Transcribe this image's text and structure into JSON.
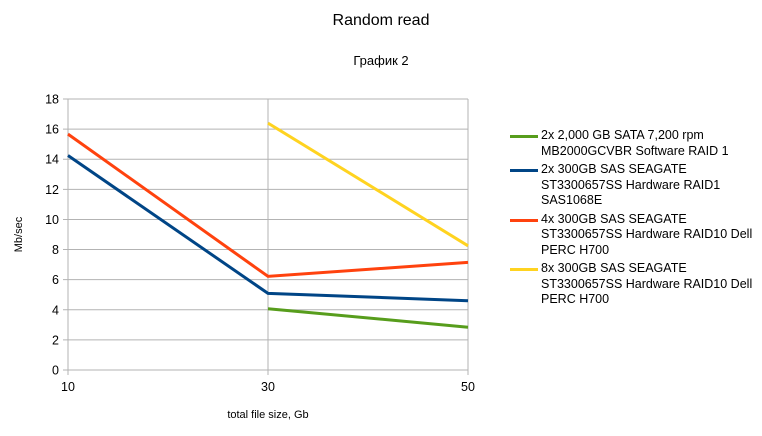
{
  "chart_data": {
    "type": "line",
    "title": "Random read",
    "subtitle": "График 2",
    "xlabel": "total file size, Gb",
    "ylabel": "Mb/sec",
    "x": [
      10,
      30,
      50
    ],
    "x_ticks": [
      "10",
      "30",
      "50"
    ],
    "ylim": [
      0,
      18
    ],
    "y_ticks": [
      "0",
      "2",
      "4",
      "6",
      "8",
      "10",
      "12",
      "14",
      "16",
      "18"
    ],
    "grid": true,
    "legend_position": "right",
    "series": [
      {
        "name": "2x 2,000 GB SATA 7,200 rpm MB2000GCVBR Software RAID 1",
        "color": "#579d1c",
        "values": [
          null,
          4.07,
          2.84
        ]
      },
      {
        "name": "2x 300GB SAS SEAGATE ST3300657SS Hardware RAID1 SAS1068E",
        "color": "#004586",
        "values": [
          14.25,
          5.09,
          4.6
        ]
      },
      {
        "name": "4x 300GB SAS SEAGATE ST3300657SS Hardware RAID10 Dell PERC H700",
        "color": "#ff420e",
        "values": [
          15.67,
          6.22,
          7.15
        ]
      },
      {
        "name": "8x 300GB SAS SEAGATE ST3300657SS Hardware RAID10 Dell PERC H700",
        "color": "#ffd320",
        "values": [
          null,
          16.4,
          8.25
        ]
      }
    ]
  }
}
